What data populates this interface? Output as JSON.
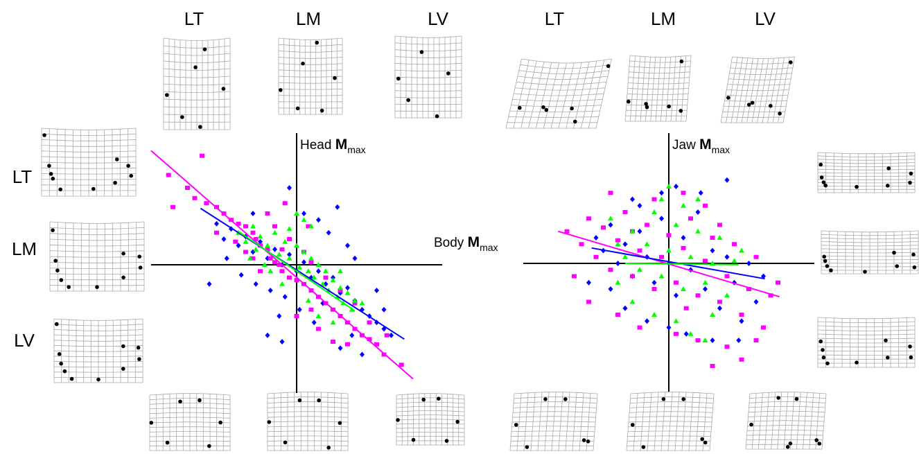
{
  "group_labels": [
    "LT",
    "LM",
    "LV"
  ],
  "axis_labels": {
    "head": {
      "prefix": "Head ",
      "symbol": "M",
      "subscript": "max"
    },
    "body": {
      "prefix": "Body ",
      "symbol": "M",
      "subscript": "max"
    },
    "jaw": {
      "prefix": "Jaw ",
      "symbol": "M",
      "subscript": "max"
    }
  },
  "colors": {
    "LT": "#ff00ff",
    "LM": "#0000ff",
    "LV": "#00ff00",
    "axes": "#000000",
    "grid": "#a8a8a8",
    "landmark": "#000000"
  },
  "chart_data": [
    {
      "type": "scatter",
      "panel": "left",
      "xlabel": "Body Mmax",
      "ylabel": "Head Mmax",
      "xlim": [
        -1,
        1
      ],
      "ylim": [
        -1,
        1
      ],
      "series_keys": [
        "LT",
        "LM",
        "LV"
      ],
      "regression": {
        "LT": [
          [
            -1.0,
            0.89
          ],
          [
            0.8,
            -0.89
          ]
        ],
        "LM": [
          [
            -0.66,
            0.44
          ],
          [
            0.74,
            -0.58
          ]
        ],
        "LV": [
          [
            -0.4,
            0.26
          ],
          [
            0.4,
            -0.36
          ]
        ]
      },
      "points": {
        "LT": [
          [
            -0.88,
            0.7
          ],
          [
            -0.75,
            0.6
          ],
          [
            -0.7,
            0.52
          ],
          [
            -0.62,
            0.48
          ],
          [
            -0.55,
            0.45
          ],
          [
            -0.5,
            0.4
          ],
          [
            -0.45,
            0.35
          ],
          [
            -0.4,
            0.32
          ],
          [
            -0.35,
            0.3
          ],
          [
            -0.3,
            0.25
          ],
          [
            -0.28,
            0.2
          ],
          [
            -0.25,
            0.15
          ],
          [
            -0.2,
            0.12
          ],
          [
            -0.18,
            0.05
          ],
          [
            -0.15,
            0.02
          ],
          [
            -0.12,
            0.0
          ],
          [
            -0.1,
            -0.05
          ],
          [
            -0.05,
            -0.1
          ],
          [
            0.0,
            -0.12
          ],
          [
            0.05,
            -0.15
          ],
          [
            0.1,
            -0.2
          ],
          [
            0.15,
            -0.25
          ],
          [
            0.2,
            -0.3
          ],
          [
            0.25,
            -0.35
          ],
          [
            0.3,
            -0.4
          ],
          [
            0.35,
            -0.45
          ],
          [
            0.4,
            -0.5
          ],
          [
            0.45,
            -0.55
          ],
          [
            0.5,
            -0.58
          ],
          [
            0.55,
            -0.62
          ],
          [
            0.6,
            -0.7
          ],
          [
            0.72,
            -0.78
          ],
          [
            -0.65,
            0.85
          ],
          [
            -0.2,
            0.4
          ],
          [
            -0.15,
            0.3
          ],
          [
            -0.05,
            0.2
          ],
          [
            0.05,
            0.1
          ],
          [
            0.1,
            0.02
          ],
          [
            -0.25,
            -0.05
          ],
          [
            -0.35,
            0.1
          ],
          [
            0.2,
            -0.1
          ],
          [
            0.3,
            -0.2
          ],
          [
            0.0,
            -0.4
          ],
          [
            0.15,
            -0.5
          ],
          [
            0.4,
            -0.3
          ],
          [
            0.5,
            -0.45
          ],
          [
            -0.55,
            0.25
          ],
          [
            -0.42,
            0.18
          ],
          [
            -0.3,
            0.05
          ],
          [
            0.25,
            -0.6
          ],
          [
            0.62,
            -0.55
          ],
          [
            0.1,
            -0.35
          ],
          [
            -0.1,
            0.12
          ],
          [
            0.35,
            -0.62
          ],
          [
            -0.08,
            0.48
          ],
          [
            0.08,
            0.3
          ],
          [
            -0.85,
            0.45
          ]
        ],
        "LM": [
          [
            -0.55,
            0.32
          ],
          [
            -0.5,
            0.2
          ],
          [
            -0.45,
            0.28
          ],
          [
            -0.4,
            0.15
          ],
          [
            -0.35,
            0.22
          ],
          [
            -0.3,
            0.1
          ],
          [
            -0.25,
            0.18
          ],
          [
            -0.2,
            0.05
          ],
          [
            -0.15,
            0.12
          ],
          [
            -0.1,
            0.0
          ],
          [
            -0.05,
            0.08
          ],
          [
            0.0,
            -0.05
          ],
          [
            0.05,
            0.02
          ],
          [
            0.1,
            -0.1
          ],
          [
            0.15,
            -0.05
          ],
          [
            0.2,
            -0.15
          ],
          [
            0.25,
            -0.1
          ],
          [
            0.3,
            -0.22
          ],
          [
            0.35,
            -0.18
          ],
          [
            0.4,
            -0.28
          ],
          [
            0.45,
            -0.35
          ],
          [
            0.5,
            -0.4
          ],
          [
            0.55,
            -0.45
          ],
          [
            0.6,
            -0.5
          ],
          [
            0.65,
            -0.55
          ],
          [
            -0.48,
            0.05
          ],
          [
            -0.38,
            -0.08
          ],
          [
            -0.28,
            -0.15
          ],
          [
            -0.18,
            -0.2
          ],
          [
            -0.08,
            -0.25
          ],
          [
            0.02,
            -0.35
          ],
          [
            0.12,
            -0.45
          ],
          [
            -0.2,
            -0.55
          ],
          [
            -0.1,
            -0.6
          ],
          [
            0.3,
            -0.65
          ],
          [
            0.45,
            -0.7
          ],
          [
            0.05,
            0.4
          ],
          [
            0.15,
            0.35
          ],
          [
            0.22,
            0.25
          ],
          [
            0.35,
            0.15
          ],
          [
            0.4,
            0.05
          ],
          [
            -0.05,
            0.6
          ],
          [
            -0.3,
            0.4
          ],
          [
            0.28,
            0.45
          ],
          [
            0.55,
            -0.2
          ],
          [
            0.6,
            -0.35
          ],
          [
            -0.6,
            -0.15
          ],
          [
            0.18,
            -0.3
          ],
          [
            0.38,
            -0.55
          ],
          [
            -0.12,
            -0.4
          ]
        ],
        "LV": [
          [
            -0.4,
            0.25
          ],
          [
            -0.35,
            0.18
          ],
          [
            -0.3,
            0.3
          ],
          [
            -0.28,
            0.12
          ],
          [
            -0.25,
            0.22
          ],
          [
            -0.2,
            0.15
          ],
          [
            -0.15,
            0.25
          ],
          [
            -0.12,
            0.08
          ],
          [
            -0.08,
            0.18
          ],
          [
            -0.05,
            0.05
          ],
          [
            0.0,
            0.15
          ],
          [
            0.02,
            -0.02
          ],
          [
            0.05,
            0.1
          ],
          [
            0.08,
            -0.05
          ],
          [
            0.1,
            0.05
          ],
          [
            0.12,
            -0.1
          ],
          [
            0.15,
            0.0
          ],
          [
            0.18,
            -0.15
          ],
          [
            0.2,
            -0.05
          ],
          [
            0.22,
            -0.2
          ],
          [
            0.25,
            -0.12
          ],
          [
            0.28,
            -0.25
          ],
          [
            0.3,
            -0.18
          ],
          [
            0.32,
            -0.3
          ],
          [
            0.35,
            -0.22
          ],
          [
            0.38,
            -0.35
          ],
          [
            0.4,
            -0.28
          ],
          [
            -0.1,
            -0.15
          ],
          [
            -0.18,
            -0.05
          ],
          [
            0.05,
            0.35
          ],
          [
            0.1,
            0.3
          ],
          [
            0.0,
            0.4
          ],
          [
            -0.05,
            0.28
          ],
          [
            0.15,
            -0.4
          ],
          [
            0.25,
            -0.45
          ],
          [
            -0.22,
            0.0
          ],
          [
            0.3,
            -0.05
          ],
          [
            -0.32,
            0.05
          ],
          [
            0.08,
            -0.28
          ],
          [
            0.45,
            -0.3
          ]
        ]
      }
    },
    {
      "type": "scatter",
      "panel": "right",
      "xlabel": "Body Mmax",
      "ylabel": "Jaw Mmax",
      "xlim": [
        -1,
        1
      ],
      "ylim": [
        -1,
        1
      ],
      "series_keys": [
        "LT",
        "LM",
        "LV"
      ],
      "regression": {
        "LT": [
          [
            -0.76,
            0.25
          ],
          [
            0.76,
            -0.26
          ]
        ],
        "LM": [
          [
            -0.53,
            0.12
          ],
          [
            0.66,
            -0.12
          ]
        ],
        "LV": [
          [
            -0.3,
            0.0
          ],
          [
            0.48,
            -0.01
          ]
        ]
      },
      "points": {
        "LT": [
          [
            -0.7,
            0.25
          ],
          [
            -0.6,
            0.15
          ],
          [
            -0.55,
            0.35
          ],
          [
            -0.5,
            0.05
          ],
          [
            -0.45,
            0.28
          ],
          [
            -0.4,
            -0.05
          ],
          [
            -0.35,
            0.18
          ],
          [
            -0.3,
            0.4
          ],
          [
            -0.25,
            -0.1
          ],
          [
            -0.2,
            0.1
          ],
          [
            -0.15,
            0.3
          ],
          [
            -0.1,
            -0.2
          ],
          [
            -0.05,
            0.05
          ],
          [
            0.0,
            0.22
          ],
          [
            0.05,
            -0.15
          ],
          [
            0.1,
            0.12
          ],
          [
            0.15,
            0.35
          ],
          [
            0.2,
            -0.25
          ],
          [
            0.25,
            0.02
          ],
          [
            0.3,
            0.2
          ],
          [
            0.35,
            -0.3
          ],
          [
            0.4,
            -0.1
          ],
          [
            0.45,
            0.15
          ],
          [
            0.5,
            -0.4
          ],
          [
            0.55,
            -0.2
          ],
          [
            0.6,
            0.05
          ],
          [
            0.65,
            -0.5
          ],
          [
            0.7,
            -0.25
          ],
          [
            -0.55,
            -0.3
          ],
          [
            -0.35,
            -0.4
          ],
          [
            -0.2,
            -0.5
          ],
          [
            0.05,
            -0.55
          ],
          [
            0.2,
            -0.6
          ],
          [
            0.4,
            -0.65
          ],
          [
            0.5,
            -0.75
          ],
          [
            0.3,
            -0.8
          ],
          [
            -0.1,
            0.5
          ],
          [
            0.1,
            0.55
          ],
          [
            0.25,
            0.45
          ],
          [
            -0.4,
            0.55
          ],
          [
            0.35,
            0.3
          ],
          [
            -0.65,
            -0.1
          ],
          [
            0.75,
            -0.15
          ],
          [
            0.6,
            -0.6
          ],
          [
            -0.25,
            0.25
          ],
          [
            0.12,
            -0.35
          ]
        ],
        "LM": [
          [
            -0.5,
            0.2
          ],
          [
            -0.45,
            0.1
          ],
          [
            -0.4,
            0.3
          ],
          [
            -0.35,
            0.0
          ],
          [
            -0.3,
            0.15
          ],
          [
            -0.25,
            -0.1
          ],
          [
            -0.2,
            0.25
          ],
          [
            -0.15,
            0.05
          ],
          [
            -0.1,
            -0.15
          ],
          [
            -0.05,
            0.35
          ],
          [
            0.0,
            0.0
          ],
          [
            0.05,
            -0.25
          ],
          [
            0.1,
            0.2
          ],
          [
            0.15,
            -0.05
          ],
          [
            0.2,
            0.4
          ],
          [
            0.25,
            -0.2
          ],
          [
            0.3,
            0.1
          ],
          [
            0.35,
            -0.35
          ],
          [
            0.4,
            0.05
          ],
          [
            0.45,
            -0.15
          ],
          [
            0.5,
            -0.45
          ],
          [
            0.55,
            0.0
          ],
          [
            0.6,
            -0.3
          ],
          [
            -0.3,
            -0.35
          ],
          [
            -0.15,
            -0.45
          ],
          [
            0.0,
            -0.5
          ],
          [
            0.12,
            -0.55
          ],
          [
            0.3,
            -0.6
          ],
          [
            -0.05,
            0.55
          ],
          [
            0.05,
            0.6
          ],
          [
            0.22,
            0.55
          ],
          [
            0.4,
            0.65
          ],
          [
            -0.2,
            0.45
          ],
          [
            -0.55,
            -0.15
          ],
          [
            0.65,
            -0.1
          ],
          [
            -0.4,
            -0.2
          ],
          [
            0.48,
            -0.6
          ],
          [
            -0.25,
            0.5
          ]
        ],
        "LV": [
          [
            -0.4,
            0.35
          ],
          [
            -0.35,
            0.15
          ],
          [
            -0.3,
            0.05
          ],
          [
            -0.25,
            0.25
          ],
          [
            -0.2,
            -0.05
          ],
          [
            -0.15,
            0.15
          ],
          [
            -0.1,
            0.4
          ],
          [
            -0.05,
            -0.1
          ],
          [
            0.0,
            0.1
          ],
          [
            0.05,
            0.3
          ],
          [
            0.1,
            -0.2
          ],
          [
            0.15,
            0.05
          ],
          [
            0.2,
            0.25
          ],
          [
            0.25,
            -0.15
          ],
          [
            0.3,
            0.0
          ],
          [
            0.35,
            0.2
          ],
          [
            0.4,
            -0.25
          ],
          [
            0.45,
            0.02
          ],
          [
            0.5,
            0.1
          ],
          [
            -0.25,
            -0.3
          ],
          [
            -0.1,
            -0.4
          ],
          [
            0.05,
            -0.45
          ],
          [
            0.15,
            -0.55
          ],
          [
            0.25,
            -0.6
          ],
          [
            -0.05,
            0.5
          ],
          [
            0.1,
            0.45
          ],
          [
            -0.35,
            -0.15
          ],
          [
            0.3,
            -0.4
          ],
          [
            0.0,
            0.6
          ],
          [
            0.2,
            0.5
          ]
        ]
      }
    }
  ]
}
